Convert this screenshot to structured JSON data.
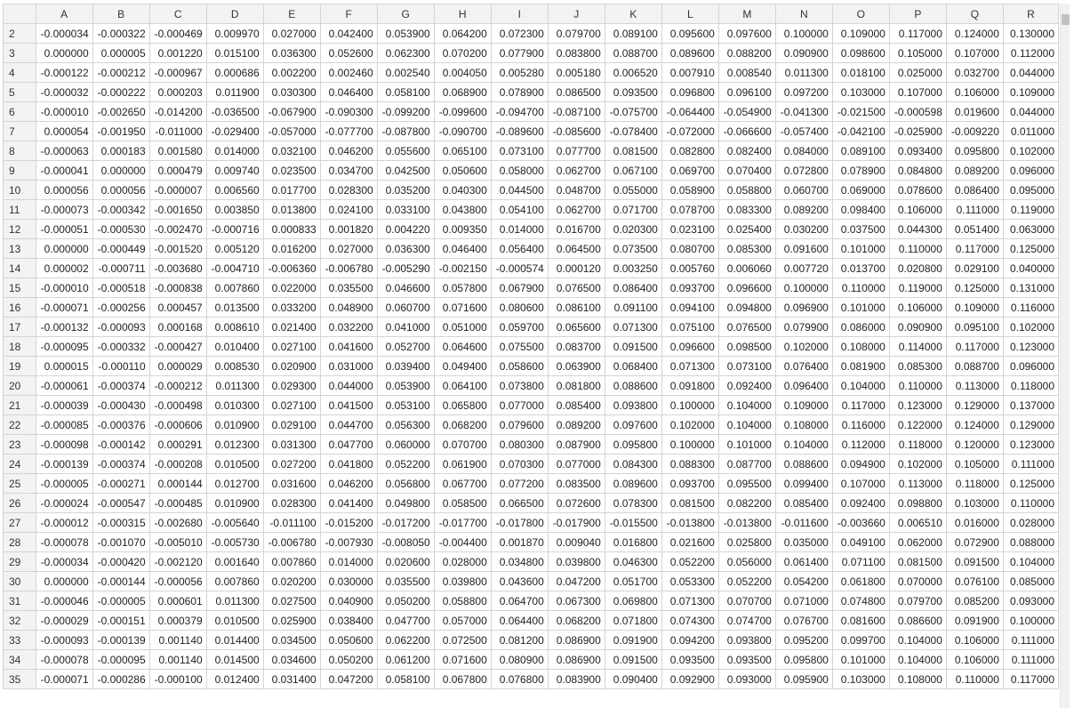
{
  "columns": [
    "A",
    "B",
    "C",
    "D",
    "E",
    "F",
    "G",
    "H",
    "I",
    "J",
    "K",
    "L",
    "M",
    "N",
    "O",
    "P",
    "Q",
    "R"
  ],
  "rows": [
    {
      "n": "2",
      "v": [
        "-0.000034",
        "-0.000322",
        "-0.000469",
        "0.009970",
        "0.027000",
        "0.042400",
        "0.053900",
        "0.064200",
        "0.072300",
        "0.079700",
        "0.089100",
        "0.095600",
        "0.097600",
        "0.100000",
        "0.109000",
        "0.117000",
        "0.124000",
        "0.130000"
      ]
    },
    {
      "n": "3",
      "v": [
        "0.000000",
        "0.000005",
        "0.001220",
        "0.015100",
        "0.036300",
        "0.052600",
        "0.062300",
        "0.070200",
        "0.077900",
        "0.083800",
        "0.088700",
        "0.089600",
        "0.088200",
        "0.090900",
        "0.098600",
        "0.105000",
        "0.107000",
        "0.112000"
      ]
    },
    {
      "n": "4",
      "v": [
        "-0.000122",
        "-0.000212",
        "-0.000967",
        "0.000686",
        "0.002200",
        "0.002460",
        "0.002540",
        "0.004050",
        "0.005280",
        "0.005180",
        "0.006520",
        "0.007910",
        "0.008540",
        "0.011300",
        "0.018100",
        "0.025000",
        "0.032700",
        "0.044000"
      ]
    },
    {
      "n": "5",
      "v": [
        "-0.000032",
        "-0.000222",
        "0.000203",
        "0.011900",
        "0.030300",
        "0.046400",
        "0.058100",
        "0.068900",
        "0.078900",
        "0.086500",
        "0.093500",
        "0.096800",
        "0.096100",
        "0.097200",
        "0.103000",
        "0.107000",
        "0.106000",
        "0.109000"
      ]
    },
    {
      "n": "6",
      "v": [
        "-0.000010",
        "-0.002650",
        "-0.014200",
        "-0.036500",
        "-0.067900",
        "-0.090300",
        "-0.099200",
        "-0.099600",
        "-0.094700",
        "-0.087100",
        "-0.075700",
        "-0.064400",
        "-0.054900",
        "-0.041300",
        "-0.021500",
        "-0.000598",
        "0.019600",
        "0.044000"
      ]
    },
    {
      "n": "7",
      "v": [
        "0.000054",
        "-0.001950",
        "-0.011000",
        "-0.029400",
        "-0.057000",
        "-0.077700",
        "-0.087800",
        "-0.090700",
        "-0.089600",
        "-0.085600",
        "-0.078400",
        "-0.072000",
        "-0.066600",
        "-0.057400",
        "-0.042100",
        "-0.025900",
        "-0.009220",
        "0.011000"
      ]
    },
    {
      "n": "8",
      "v": [
        "-0.000063",
        "0.000183",
        "0.001580",
        "0.014000",
        "0.032100",
        "0.046200",
        "0.055600",
        "0.065100",
        "0.073100",
        "0.077700",
        "0.081500",
        "0.082800",
        "0.082400",
        "0.084000",
        "0.089100",
        "0.093400",
        "0.095800",
        "0.102000"
      ]
    },
    {
      "n": "9",
      "v": [
        "-0.000041",
        "0.000000",
        "0.000479",
        "0.009740",
        "0.023500",
        "0.034700",
        "0.042500",
        "0.050600",
        "0.058000",
        "0.062700",
        "0.067100",
        "0.069700",
        "0.070400",
        "0.072800",
        "0.078900",
        "0.084800",
        "0.089200",
        "0.096000"
      ]
    },
    {
      "n": "10",
      "v": [
        "0.000056",
        "0.000056",
        "-0.000007",
        "0.006560",
        "0.017700",
        "0.028300",
        "0.035200",
        "0.040300",
        "0.044500",
        "0.048700",
        "0.055000",
        "0.058900",
        "0.058800",
        "0.060700",
        "0.069000",
        "0.078600",
        "0.086400",
        "0.095000"
      ]
    },
    {
      "n": "11",
      "v": [
        "-0.000073",
        "-0.000342",
        "-0.001650",
        "0.003850",
        "0.013800",
        "0.024100",
        "0.033100",
        "0.043800",
        "0.054100",
        "0.062700",
        "0.071700",
        "0.078700",
        "0.083300",
        "0.089200",
        "0.098400",
        "0.106000",
        "0.111000",
        "0.119000"
      ]
    },
    {
      "n": "12",
      "v": [
        "-0.000051",
        "-0.000530",
        "-0.002470",
        "-0.000716",
        "0.000833",
        "0.001820",
        "0.004220",
        "0.009350",
        "0.014000",
        "0.016700",
        "0.020300",
        "0.023100",
        "0.025400",
        "0.030200",
        "0.037500",
        "0.044300",
        "0.051400",
        "0.063000"
      ]
    },
    {
      "n": "13",
      "v": [
        "0.000000",
        "-0.000449",
        "-0.001520",
        "0.005120",
        "0.016200",
        "0.027000",
        "0.036300",
        "0.046400",
        "0.056400",
        "0.064500",
        "0.073500",
        "0.080700",
        "0.085300",
        "0.091600",
        "0.101000",
        "0.110000",
        "0.117000",
        "0.125000"
      ]
    },
    {
      "n": "14",
      "v": [
        "0.000002",
        "-0.000711",
        "-0.003680",
        "-0.004710",
        "-0.006360",
        "-0.006780",
        "-0.005290",
        "-0.002150",
        "-0.000574",
        "0.000120",
        "0.003250",
        "0.005760",
        "0.006060",
        "0.007720",
        "0.013700",
        "0.020800",
        "0.029100",
        "0.040000"
      ]
    },
    {
      "n": "15",
      "v": [
        "-0.000010",
        "-0.000518",
        "-0.000838",
        "0.007860",
        "0.022000",
        "0.035500",
        "0.046600",
        "0.057800",
        "0.067900",
        "0.076500",
        "0.086400",
        "0.093700",
        "0.096600",
        "0.100000",
        "0.110000",
        "0.119000",
        "0.125000",
        "0.131000"
      ]
    },
    {
      "n": "16",
      "v": [
        "-0.000071",
        "-0.000256",
        "0.000457",
        "0.013500",
        "0.033200",
        "0.048900",
        "0.060700",
        "0.071600",
        "0.080600",
        "0.086100",
        "0.091100",
        "0.094100",
        "0.094800",
        "0.096900",
        "0.101000",
        "0.106000",
        "0.109000",
        "0.116000"
      ]
    },
    {
      "n": "17",
      "v": [
        "-0.000132",
        "-0.000093",
        "0.000168",
        "0.008610",
        "0.021400",
        "0.032200",
        "0.041000",
        "0.051000",
        "0.059700",
        "0.065600",
        "0.071300",
        "0.075100",
        "0.076500",
        "0.079900",
        "0.086000",
        "0.090900",
        "0.095100",
        "0.102000"
      ]
    },
    {
      "n": "18",
      "v": [
        "-0.000095",
        "-0.000332",
        "-0.000427",
        "0.010400",
        "0.027100",
        "0.041600",
        "0.052700",
        "0.064600",
        "0.075500",
        "0.083700",
        "0.091500",
        "0.096600",
        "0.098500",
        "0.102000",
        "0.108000",
        "0.114000",
        "0.117000",
        "0.123000"
      ]
    },
    {
      "n": "19",
      "v": [
        "0.000015",
        "-0.000110",
        "0.000029",
        "0.008530",
        "0.020900",
        "0.031000",
        "0.039400",
        "0.049400",
        "0.058600",
        "0.063900",
        "0.068400",
        "0.071300",
        "0.073100",
        "0.076400",
        "0.081900",
        "0.085300",
        "0.088700",
        "0.096000"
      ]
    },
    {
      "n": "20",
      "v": [
        "-0.000061",
        "-0.000374",
        "-0.000212",
        "0.011300",
        "0.029300",
        "0.044000",
        "0.053900",
        "0.064100",
        "0.073800",
        "0.081800",
        "0.088600",
        "0.091800",
        "0.092400",
        "0.096400",
        "0.104000",
        "0.110000",
        "0.113000",
        "0.118000"
      ]
    },
    {
      "n": "21",
      "v": [
        "-0.000039",
        "-0.000430",
        "-0.000498",
        "0.010300",
        "0.027100",
        "0.041500",
        "0.053100",
        "0.065800",
        "0.077000",
        "0.085400",
        "0.093800",
        "0.100000",
        "0.104000",
        "0.109000",
        "0.117000",
        "0.123000",
        "0.129000",
        "0.137000"
      ]
    },
    {
      "n": "22",
      "v": [
        "-0.000085",
        "-0.000376",
        "-0.000606",
        "0.010900",
        "0.029100",
        "0.044700",
        "0.056300",
        "0.068200",
        "0.079600",
        "0.089200",
        "0.097600",
        "0.102000",
        "0.104000",
        "0.108000",
        "0.116000",
        "0.122000",
        "0.124000",
        "0.129000"
      ]
    },
    {
      "n": "23",
      "v": [
        "-0.000098",
        "-0.000142",
        "0.000291",
        "0.012300",
        "0.031300",
        "0.047700",
        "0.060000",
        "0.070700",
        "0.080300",
        "0.087900",
        "0.095800",
        "0.100000",
        "0.101000",
        "0.104000",
        "0.112000",
        "0.118000",
        "0.120000",
        "0.123000"
      ]
    },
    {
      "n": "24",
      "v": [
        "-0.000139",
        "-0.000374",
        "-0.000208",
        "0.010500",
        "0.027200",
        "0.041800",
        "0.052200",
        "0.061900",
        "0.070300",
        "0.077000",
        "0.084300",
        "0.088300",
        "0.087700",
        "0.088600",
        "0.094900",
        "0.102000",
        "0.105000",
        "0.111000"
      ]
    },
    {
      "n": "25",
      "v": [
        "-0.000005",
        "-0.000271",
        "0.000144",
        "0.012700",
        "0.031600",
        "0.046200",
        "0.056800",
        "0.067700",
        "0.077200",
        "0.083500",
        "0.089600",
        "0.093700",
        "0.095500",
        "0.099400",
        "0.107000",
        "0.113000",
        "0.118000",
        "0.125000"
      ]
    },
    {
      "n": "26",
      "v": [
        "-0.000024",
        "-0.000547",
        "-0.000485",
        "0.010900",
        "0.028300",
        "0.041400",
        "0.049800",
        "0.058500",
        "0.066500",
        "0.072600",
        "0.078300",
        "0.081500",
        "0.082200",
        "0.085400",
        "0.092400",
        "0.098800",
        "0.103000",
        "0.110000"
      ]
    },
    {
      "n": "27",
      "v": [
        "-0.000012",
        "-0.000315",
        "-0.002680",
        "-0.005640",
        "-0.011100",
        "-0.015200",
        "-0.017200",
        "-0.017700",
        "-0.017800",
        "-0.017900",
        "-0.015500",
        "-0.013800",
        "-0.013800",
        "-0.011600",
        "-0.003660",
        "0.006510",
        "0.016000",
        "0.028000"
      ]
    },
    {
      "n": "28",
      "v": [
        "-0.000078",
        "-0.001070",
        "-0.005010",
        "-0.005730",
        "-0.006780",
        "-0.007930",
        "-0.008050",
        "-0.004400",
        "0.001870",
        "0.009040",
        "0.016800",
        "0.021600",
        "0.025800",
        "0.035000",
        "0.049100",
        "0.062000",
        "0.072900",
        "0.088000"
      ]
    },
    {
      "n": "29",
      "v": [
        "-0.000034",
        "-0.000420",
        "-0.002120",
        "0.001640",
        "0.007860",
        "0.014000",
        "0.020600",
        "0.028000",
        "0.034800",
        "0.039800",
        "0.046300",
        "0.052200",
        "0.056000",
        "0.061400",
        "0.071100",
        "0.081500",
        "0.091500",
        "0.104000"
      ]
    },
    {
      "n": "30",
      "v": [
        "0.000000",
        "-0.000144",
        "-0.000056",
        "0.007860",
        "0.020200",
        "0.030000",
        "0.035500",
        "0.039800",
        "0.043600",
        "0.047200",
        "0.051700",
        "0.053300",
        "0.052200",
        "0.054200",
        "0.061800",
        "0.070000",
        "0.076100",
        "0.085000"
      ]
    },
    {
      "n": "31",
      "v": [
        "-0.000046",
        "-0.000005",
        "0.000601",
        "0.011300",
        "0.027500",
        "0.040900",
        "0.050200",
        "0.058800",
        "0.064700",
        "0.067300",
        "0.069800",
        "0.071300",
        "0.070700",
        "0.071000",
        "0.074800",
        "0.079700",
        "0.085200",
        "0.093000"
      ]
    },
    {
      "n": "32",
      "v": [
        "-0.000029",
        "-0.000151",
        "0.000379",
        "0.010500",
        "0.025900",
        "0.038400",
        "0.047700",
        "0.057000",
        "0.064400",
        "0.068200",
        "0.071800",
        "0.074300",
        "0.074700",
        "0.076700",
        "0.081600",
        "0.086600",
        "0.091900",
        "0.100000"
      ]
    },
    {
      "n": "33",
      "v": [
        "-0.000093",
        "-0.000139",
        "0.001140",
        "0.014400",
        "0.034500",
        "0.050600",
        "0.062200",
        "0.072500",
        "0.081200",
        "0.086900",
        "0.091900",
        "0.094200",
        "0.093800",
        "0.095200",
        "0.099700",
        "0.104000",
        "0.106000",
        "0.111000"
      ]
    },
    {
      "n": "34",
      "v": [
        "-0.000078",
        "-0.000095",
        "0.001140",
        "0.014500",
        "0.034600",
        "0.050200",
        "0.061200",
        "0.071600",
        "0.080900",
        "0.086900",
        "0.091500",
        "0.093500",
        "0.093500",
        "0.095800",
        "0.101000",
        "0.104000",
        "0.106000",
        "0.111000"
      ]
    },
    {
      "n": "35",
      "v": [
        "-0.000071",
        "-0.000286",
        "-0.000100",
        "0.012400",
        "0.031400",
        "0.047200",
        "0.058100",
        "0.067800",
        "0.076800",
        "0.083900",
        "0.090400",
        "0.092900",
        "0.093000",
        "0.095900",
        "0.103000",
        "0.108000",
        "0.110000",
        "0.117000"
      ]
    }
  ]
}
